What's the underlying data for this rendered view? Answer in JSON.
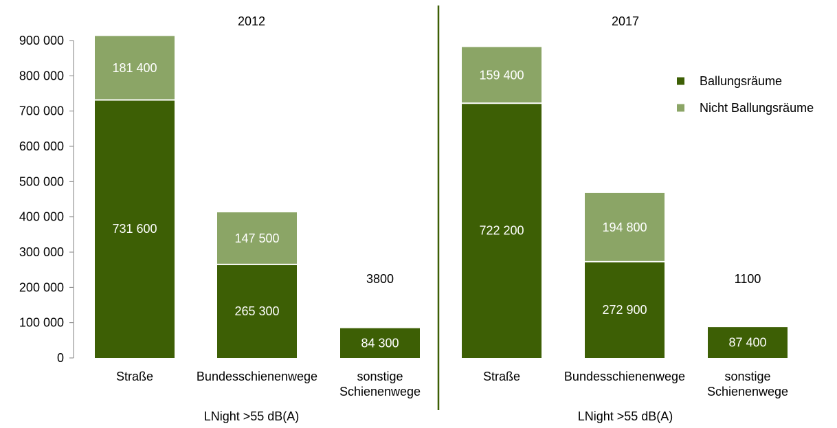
{
  "colors": {
    "ballung": "#3d5f05",
    "nicht_ballung": "#8ba566",
    "divider": "#3d5f05",
    "axis": "#7f7f7f",
    "inbar_text": "#ffffff"
  },
  "chart_data": {
    "type": "bar",
    "stacked": true,
    "ylim": [
      0,
      900000
    ],
    "yticks": [
      "0",
      "100 000",
      "200 000",
      "300 000",
      "400 000",
      "500 000",
      "600 000",
      "700 000",
      "800 000",
      "900 000"
    ],
    "ytick_values": [
      0,
      100000,
      200000,
      300000,
      400000,
      500000,
      600000,
      700000,
      800000,
      900000
    ],
    "legend": {
      "position": "top-right",
      "entries": [
        "Ballungsräume",
        "Nicht Ballungsräume"
      ]
    },
    "panels": [
      {
        "title": "2012",
        "xlabel": "LNight >55 dB(A)",
        "categories": [
          [
            "Straße"
          ],
          [
            "Bundesschienenwege"
          ],
          [
            "sonstige",
            "Schienenwege"
          ]
        ],
        "series": [
          {
            "name": "Ballungsräume",
            "values": [
              731600,
              265300,
              84300
            ],
            "labels": [
              "731 600",
              "265 300",
              "84 300"
            ]
          },
          {
            "name": "Nicht Ballungsräume",
            "values": [
              181400,
              147500,
              3800
            ],
            "labels": [
              "181 400",
              "147 500",
              "3800"
            ]
          }
        ]
      },
      {
        "title": "2017",
        "xlabel": "LNight >55 dB(A)",
        "categories": [
          [
            "Straße"
          ],
          [
            "Bundesschienenwege"
          ],
          [
            "sonstige",
            "Schienenwege"
          ]
        ],
        "series": [
          {
            "name": "Ballungsräume",
            "values": [
              722200,
              272900,
              87400
            ],
            "labels": [
              "722 200",
              "272 900",
              "87 400"
            ]
          },
          {
            "name": "Nicht Ballungsräume",
            "values": [
              159400,
              194800,
              1100
            ],
            "labels": [
              "159 400",
              "194 800",
              "1100"
            ]
          }
        ]
      }
    ]
  }
}
